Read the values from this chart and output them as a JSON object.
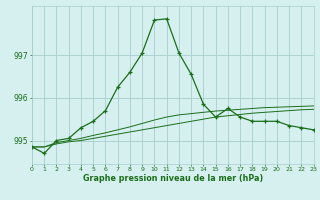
{
  "x": [
    0,
    1,
    2,
    3,
    4,
    5,
    6,
    7,
    8,
    9,
    10,
    11,
    12,
    13,
    14,
    15,
    16,
    17,
    18,
    19,
    20,
    21,
    22,
    23
  ],
  "line1": [
    994.85,
    994.7,
    995.0,
    995.05,
    995.3,
    995.45,
    995.7,
    996.25,
    996.6,
    997.05,
    997.82,
    997.85,
    997.05,
    996.55,
    995.85,
    995.55,
    995.75,
    995.55,
    995.45,
    995.45,
    995.45,
    995.35,
    995.3,
    995.25
  ],
  "line2": [
    994.85,
    994.85,
    994.92,
    994.97,
    995.0,
    995.05,
    995.1,
    995.15,
    995.2,
    995.25,
    995.3,
    995.35,
    995.4,
    995.45,
    995.5,
    995.55,
    995.58,
    995.61,
    995.64,
    995.66,
    995.68,
    995.7,
    995.72,
    995.73
  ],
  "line3": [
    994.85,
    994.85,
    994.95,
    995.0,
    995.05,
    995.12,
    995.18,
    995.25,
    995.32,
    995.4,
    995.48,
    995.55,
    995.6,
    995.63,
    995.66,
    995.69,
    995.71,
    995.73,
    995.75,
    995.77,
    995.78,
    995.79,
    995.8,
    995.81
  ],
  "line_color": "#1a6e1a",
  "bg_color": "#d6f0f0",
  "grid_color": "#a8cece",
  "xlabel": "Graphe pression niveau de la mer (hPa)",
  "ytick_labels": [
    "995",
    "996",
    "997"
  ],
  "yticks": [
    995,
    996,
    997
  ],
  "xticks": [
    0,
    1,
    2,
    3,
    4,
    5,
    6,
    7,
    8,
    9,
    10,
    11,
    12,
    13,
    14,
    15,
    16,
    17,
    18,
    19,
    20,
    21,
    22,
    23
  ],
  "ylim": [
    994.45,
    998.15
  ],
  "xlim": [
    0,
    23
  ]
}
